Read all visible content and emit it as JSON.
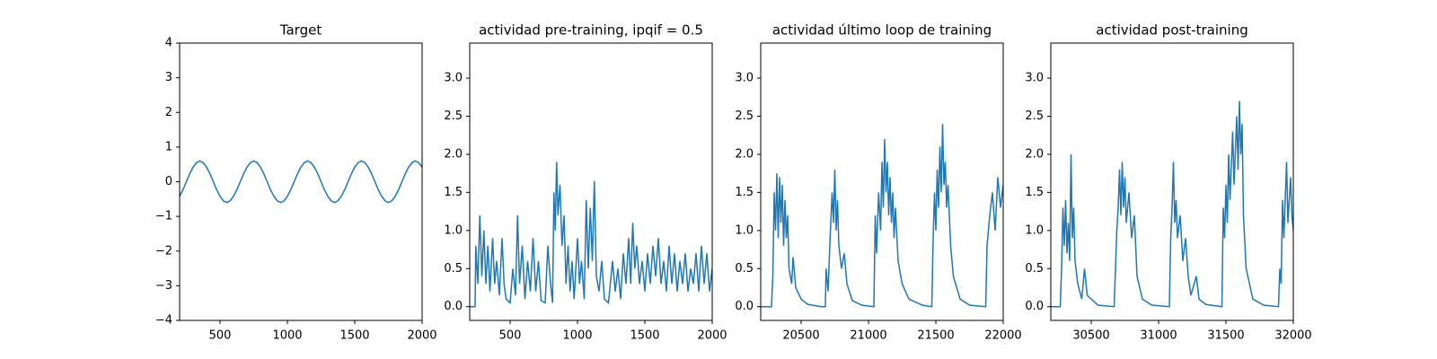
{
  "chart_data": [
    {
      "type": "line",
      "title": "Target",
      "color": "#1f77b4",
      "x": [
        200,
        225,
        250,
        275,
        300,
        325,
        350,
        375,
        400,
        425,
        450,
        475,
        500,
        525,
        550,
        575,
        600,
        625,
        650,
        675,
        700,
        725,
        750,
        775,
        800,
        825,
        850,
        875,
        900,
        925,
        950,
        975,
        1000,
        1025,
        1050,
        1075,
        1100,
        1125,
        1150,
        1175,
        1200,
        1225,
        1250,
        1275,
        1300,
        1325,
        1350,
        1375,
        1400,
        1425,
        1450,
        1475,
        1500,
        1525,
        1550,
        1575,
        1600,
        1625,
        1650,
        1675,
        1700,
        1725,
        1750,
        1775,
        1800,
        1825,
        1850,
        1875,
        1900,
        1925,
        1950,
        1975,
        2000
      ],
      "values": [
        -0.42,
        -0.23,
        0,
        0.23,
        0.42,
        0.55,
        0.6,
        0.55,
        0.42,
        0.23,
        0,
        -0.23,
        -0.42,
        -0.55,
        -0.6,
        -0.55,
        -0.42,
        -0.23,
        0,
        0.23,
        0.42,
        0.55,
        0.6,
        0.55,
        0.42,
        0.23,
        0,
        -0.23,
        -0.42,
        -0.55,
        -0.6,
        -0.55,
        -0.42,
        -0.23,
        0,
        0.23,
        0.42,
        0.55,
        0.6,
        0.55,
        0.42,
        0.23,
        0,
        -0.23,
        -0.42,
        -0.55,
        -0.6,
        -0.55,
        -0.42,
        -0.23,
        0,
        0.23,
        0.42,
        0.55,
        0.6,
        0.55,
        0.42,
        0.23,
        0,
        -0.23,
        -0.42,
        -0.55,
        -0.6,
        -0.55,
        -0.42,
        -0.23,
        0,
        0.23,
        0.42,
        0.55,
        0.6,
        0.55,
        0.42
      ],
      "xlim": [
        200,
        2000
      ],
      "ylim": [
        -4,
        4
      ],
      "xticks": [
        500,
        1000,
        1500,
        2000
      ],
      "yticks": [
        {
          "value": -4,
          "label": "−4"
        },
        {
          "value": -3,
          "label": "−3"
        },
        {
          "value": -2,
          "label": "−2"
        },
        {
          "value": -1,
          "label": "−1"
        },
        0,
        1,
        2,
        3,
        4
      ]
    },
    {
      "type": "line",
      "title": "actividad pre-training, ipqif = 0.5",
      "color": "#1f77b4",
      "x": [
        200,
        240,
        245,
        260,
        275,
        290,
        305,
        320,
        335,
        350,
        370,
        385,
        400,
        420,
        440,
        455,
        470,
        500,
        520,
        540,
        555,
        570,
        590,
        610,
        630,
        650,
        670,
        690,
        710,
        730,
        760,
        780,
        800,
        815,
        825,
        835,
        845,
        855,
        870,
        885,
        900,
        915,
        930,
        945,
        960,
        975,
        1000,
        1015,
        1030,
        1050,
        1065,
        1080,
        1095,
        1110,
        1125,
        1140,
        1160,
        1180,
        1200,
        1230,
        1260,
        1280,
        1300,
        1320,
        1340,
        1360,
        1380,
        1395,
        1410,
        1425,
        1440,
        1460,
        1480,
        1500,
        1520,
        1540,
        1560,
        1580,
        1600,
        1620,
        1640,
        1660,
        1680,
        1700,
        1720,
        1740,
        1760,
        1780,
        1800,
        1820,
        1840,
        1860,
        1880,
        1900,
        1920,
        1940,
        1960,
        1980,
        2000
      ],
      "values": [
        0,
        0,
        0.8,
        0.3,
        1.2,
        0.4,
        1.0,
        0.3,
        0.8,
        0.2,
        0.9,
        0.3,
        0.6,
        0.15,
        0.9,
        0.3,
        0.1,
        0.05,
        0.5,
        0.15,
        1.2,
        0.3,
        0.8,
        0.1,
        0.6,
        0.2,
        0.9,
        0.2,
        0.6,
        0.08,
        0.05,
        0.8,
        0.3,
        0.05,
        1.5,
        1.0,
        1.9,
        1.2,
        1.6,
        0.8,
        1.2,
        0.3,
        0.8,
        0.2,
        0.6,
        0.1,
        0.9,
        0.3,
        0.6,
        0.1,
        1.4,
        0.5,
        1.3,
        0.6,
        1.65,
        0.4,
        0.2,
        0.6,
        0.1,
        0.05,
        0.6,
        0.2,
        0.5,
        0.1,
        0.7,
        0.3,
        0.9,
        0.3,
        1.1,
        0.5,
        0.8,
        0.3,
        0.6,
        0.2,
        0.7,
        0.3,
        0.8,
        0.4,
        0.9,
        0.3,
        0.6,
        0.2,
        0.8,
        0.3,
        0.7,
        0.2,
        0.6,
        0.3,
        0.7,
        0.2,
        0.5,
        0.3,
        0.7,
        0.2,
        0.8,
        0.3,
        0.7,
        0.2,
        0.5
      ],
      "xlim": [
        200,
        2000
      ],
      "ylim": [
        -0.18,
        3.46
      ],
      "xticks": [
        500,
        1000,
        1500,
        2000
      ],
      "yticks": [
        {
          "value": 0,
          "label": "0.0"
        },
        0.5,
        {
          "value": 1,
          "label": "1.0"
        },
        1.5,
        {
          "value": 2,
          "label": "2.0"
        },
        2.5,
        {
          "value": 3,
          "label": "3.0"
        }
      ]
    },
    {
      "type": "line",
      "title": "actividad último loop de training",
      "color": "#1f77b4",
      "x": [
        20200,
        20280,
        20290,
        20300,
        20310,
        20320,
        20330,
        20340,
        20350,
        20360,
        20370,
        20380,
        20390,
        20400,
        20410,
        20430,
        20440,
        20460,
        20500,
        20550,
        20650,
        20680,
        20685,
        20700,
        20715,
        20730,
        20740,
        20750,
        20760,
        20770,
        20780,
        20800,
        20820,
        20840,
        20880,
        20950,
        21040,
        21050,
        21060,
        21075,
        21090,
        21100,
        21110,
        21120,
        21130,
        21140,
        21150,
        21160,
        21170,
        21180,
        21190,
        21200,
        21220,
        21250,
        21300,
        21400,
        21470,
        21480,
        21490,
        21500,
        21510,
        21520,
        21530,
        21540,
        21550,
        21560,
        21570,
        21580,
        21590,
        21610,
        21630,
        21680,
        21750,
        21870,
        21880,
        21900,
        21920,
        21940,
        21960,
        21980,
        22000
      ],
      "values": [
        0,
        0,
        0.4,
        1.5,
        1.0,
        1.75,
        0.9,
        1.7,
        1.1,
        1.6,
        0.8,
        1.4,
        0.9,
        1.2,
        0.5,
        0.3,
        0.65,
        0.25,
        0.1,
        0.03,
        0,
        0,
        0.5,
        0.2,
        0.9,
        1.5,
        1.1,
        1.8,
        1.0,
        1.4,
        0.8,
        0.5,
        0.7,
        0.3,
        0.08,
        0.02,
        0,
        1.2,
        0.7,
        1.5,
        1.0,
        1.9,
        1.3,
        2.2,
        1.5,
        1.9,
        1.2,
        1.7,
        1.1,
        1.5,
        0.9,
        1.3,
        0.6,
        0.3,
        0.1,
        0.02,
        0,
        0.9,
        1.5,
        1.0,
        1.8,
        1.3,
        2.1,
        1.5,
        2.4,
        1.6,
        1.9,
        1.3,
        1.6,
        0.8,
        0.4,
        0.1,
        0.02,
        0,
        0.8,
        1.2,
        1.5,
        1.0,
        1.7,
        1.3,
        1.6
      ],
      "xlim": [
        20200,
        22000
      ],
      "ylim": [
        -0.18,
        3.46
      ],
      "xticks": [
        20500,
        21000,
        21500,
        22000
      ],
      "yticks": [
        {
          "value": 0,
          "label": "0.0"
        },
        0.5,
        {
          "value": 1,
          "label": "1.0"
        },
        1.5,
        {
          "value": 2,
          "label": "2.0"
        },
        2.5,
        {
          "value": 3,
          "label": "3.0"
        }
      ]
    },
    {
      "type": "line",
      "title": "actividad post-training",
      "color": "#1f77b4",
      "x": [
        30200,
        30270,
        30280,
        30290,
        30300,
        30310,
        30320,
        30330,
        30340,
        30350,
        30360,
        30370,
        30380,
        30400,
        30430,
        30450,
        30470,
        30550,
        30670,
        30690,
        30700,
        30710,
        30720,
        30730,
        30740,
        30750,
        30760,
        30780,
        30800,
        30820,
        30840,
        30880,
        30950,
        31080,
        31090,
        31100,
        31110,
        31120,
        31130,
        31140,
        31160,
        31180,
        31200,
        31220,
        31240,
        31280,
        31300,
        31350,
        31470,
        31480,
        31490,
        31500,
        31510,
        31520,
        31530,
        31550,
        31560,
        31580,
        31590,
        31600,
        31610,
        31620,
        31630,
        31650,
        31700,
        31780,
        31890,
        31900,
        31910,
        31920,
        31930,
        31950,
        31960,
        31980,
        31990,
        32000
      ],
      "values": [
        0,
        0,
        0.5,
        1.3,
        0.8,
        1.4,
        0.7,
        1.1,
        0.6,
        2.0,
        0.9,
        1.3,
        0.6,
        0.3,
        0.1,
        0.5,
        0.15,
        0.02,
        0,
        1.0,
        1.3,
        1.8,
        1.2,
        1.9,
        1.3,
        1.7,
        1.1,
        1.5,
        0.9,
        1.2,
        0.4,
        0.1,
        0.02,
        0,
        0.9,
        1.3,
        1.9,
        1.1,
        1.4,
        0.9,
        1.2,
        0.6,
        0.9,
        0.4,
        0.15,
        0.4,
        0.1,
        0.03,
        0,
        1.3,
        0.9,
        1.6,
        1.1,
        2.0,
        1.4,
        2.3,
        1.6,
        2.5,
        1.8,
        2.7,
        2.0,
        2.4,
        1.2,
        0.5,
        0.1,
        0.02,
        0,
        0.5,
        0.3,
        1.4,
        0.9,
        1.9,
        1.1,
        1.7,
        1.2,
        1.0
      ],
      "xlim": [
        30200,
        32000
      ],
      "ylim": [
        -0.18,
        3.46
      ],
      "xticks": [
        30500,
        31000,
        31500,
        32000
      ],
      "yticks": [
        {
          "value": 0,
          "label": "0.0"
        },
        0.5,
        {
          "value": 1,
          "label": "1.0"
        },
        1.5,
        {
          "value": 2,
          "label": "2.0"
        },
        2.5,
        {
          "value": 3,
          "label": "3.0"
        }
      ]
    }
  ]
}
